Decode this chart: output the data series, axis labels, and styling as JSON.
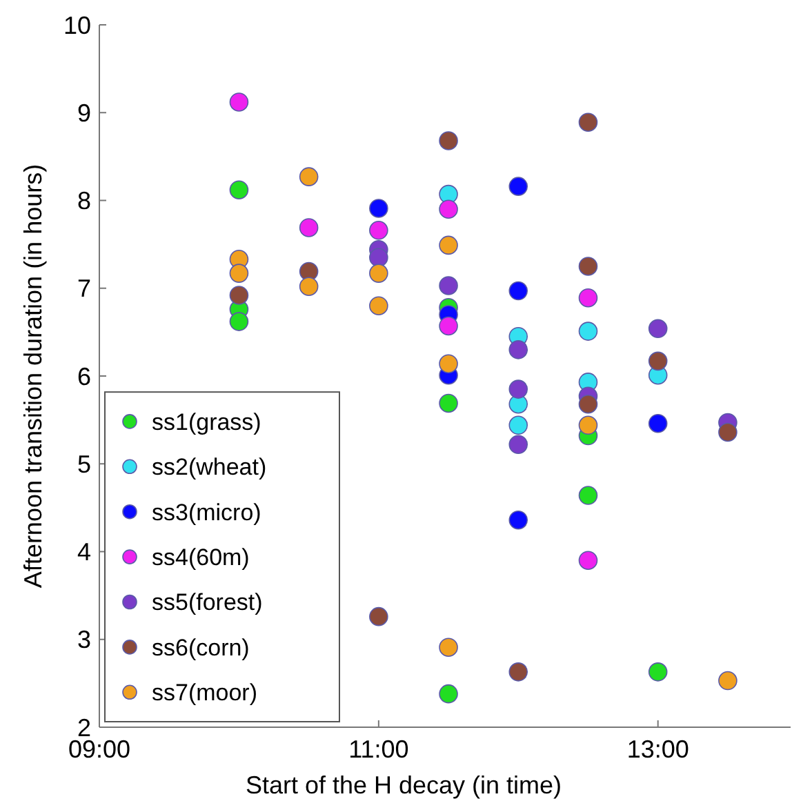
{
  "chart_data": {
    "type": "scatter",
    "xlabel": "Start of the H decay (in time)",
    "ylabel": "Afternoon transition duration (in hours)",
    "xlim": [
      9,
      13.95
    ],
    "xticks": [
      {
        "value": 9,
        "label": "09:00"
      },
      {
        "value": 11,
        "label": "11:00"
      },
      {
        "value": 13,
        "label": "13:00"
      }
    ],
    "ylim": [
      2,
      10
    ],
    "yticks": [
      2,
      3,
      4,
      5,
      6,
      7,
      8,
      9,
      10
    ],
    "grid": false,
    "legend": "bottom left",
    "marker": "circle",
    "series": [
      {
        "name": "ss1(grass)",
        "color": "#22dd22",
        "x": [
          10,
          10,
          10,
          11.5,
          11.5,
          11.5,
          12.5,
          12.5,
          13
        ],
        "values": [
          8.12,
          6.76,
          6.62,
          6.78,
          5.69,
          2.38,
          5.32,
          4.64,
          2.63
        ]
      },
      {
        "name": "ss2(wheat)",
        "color": "#33e0f0",
        "x": [
          11.5,
          12,
          12,
          12,
          12.5,
          12.5,
          13
        ],
        "values": [
          8.07,
          6.45,
          5.68,
          5.44,
          6.51,
          5.93,
          6.01
        ]
      },
      {
        "name": "ss3(micro)",
        "color": "#0a0aff",
        "x": [
          11,
          11.5,
          11.5,
          12,
          12,
          12,
          13
        ],
        "values": [
          7.91,
          6.7,
          6.01,
          8.16,
          6.97,
          4.36,
          5.46
        ]
      },
      {
        "name": "ss4(60m)",
        "color": "#ee22ee",
        "x": [
          10,
          10.5,
          11,
          11.5,
          11.5,
          12.5,
          12.5
        ],
        "values": [
          9.12,
          7.69,
          7.66,
          7.9,
          6.57,
          6.89,
          3.9
        ]
      },
      {
        "name": "ss5(forest)",
        "color": "#7a3cc8",
        "x": [
          11,
          11,
          11.5,
          12,
          12,
          12,
          12.5,
          13,
          13.5
        ],
        "values": [
          7.44,
          7.35,
          7.03,
          6.3,
          5.85,
          5.22,
          5.77,
          6.54,
          5.47
        ]
      },
      {
        "name": "ss6(corn)",
        "color": "#8b4a3a",
        "x": [
          10,
          10.5,
          11,
          11.5,
          12,
          12.5,
          12.5,
          12.5,
          13,
          13.5
        ],
        "values": [
          6.92,
          7.19,
          3.26,
          8.68,
          2.63,
          8.89,
          7.25,
          5.68,
          6.17,
          5.36
        ]
      },
      {
        "name": "ss7(moor)",
        "color": "#f0a020",
        "x": [
          10,
          10,
          10.5,
          10.5,
          11,
          11,
          11.5,
          11.5,
          11.5,
          12.5,
          13.5
        ],
        "values": [
          7.33,
          7.17,
          8.27,
          7.02,
          7.17,
          6.8,
          7.49,
          6.14,
          2.91,
          5.44,
          2.53
        ]
      }
    ]
  }
}
